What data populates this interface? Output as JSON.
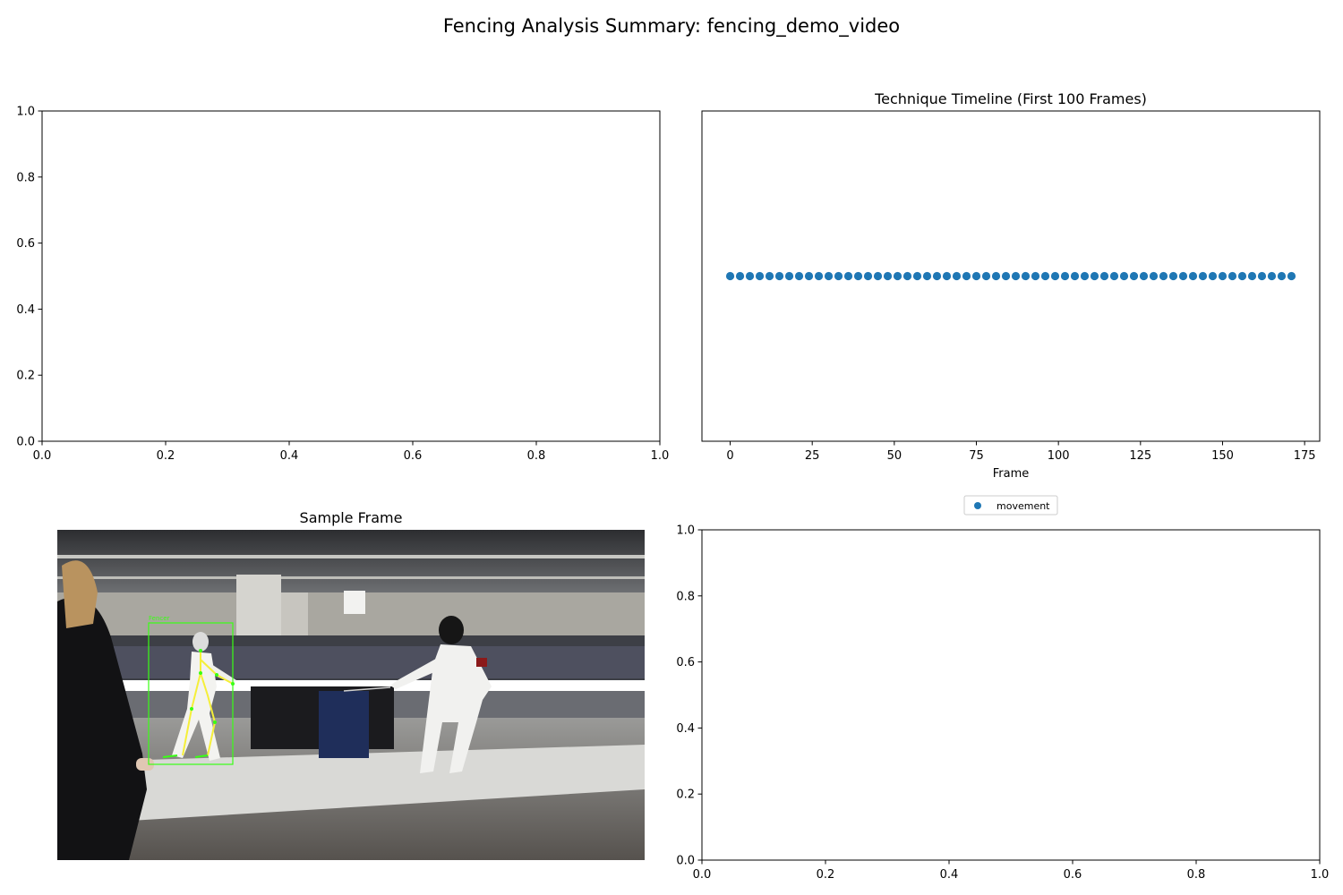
{
  "figure": {
    "suptitle": "Fencing Analysis Summary: fencing_demo_video"
  },
  "chart_data": [
    {
      "type": "scatter",
      "panel": "top-left",
      "title": "",
      "xlabel": "",
      "ylabel": "",
      "xlim": [
        0,
        1
      ],
      "ylim": [
        0,
        1
      ],
      "xticks": [
        "0.0",
        "0.2",
        "0.4",
        "0.6",
        "0.8",
        "1.0"
      ],
      "yticks": [
        "0.0",
        "0.2",
        "0.4",
        "0.6",
        "0.8",
        "1.0"
      ],
      "series": [],
      "grid": false
    },
    {
      "type": "scatter",
      "panel": "top-right",
      "title": "Technique Timeline (First 100 Frames)",
      "xlabel": "Frame",
      "ylabel": "",
      "xlim": [
        -8.6,
        179.6
      ],
      "ylim": [
        0,
        1
      ],
      "xticks": [
        "0",
        "25",
        "50",
        "75",
        "100",
        "125",
        "150",
        "175"
      ],
      "yticks": [],
      "legend": {
        "placement": "bottom-center-outside",
        "entries": [
          "movement"
        ]
      },
      "series": [
        {
          "name": "movement",
          "color": "#1f77b4",
          "x": [
            0,
            3,
            6,
            9,
            12,
            15,
            18,
            21,
            24,
            27,
            30,
            33,
            36,
            39,
            42,
            45,
            48,
            51,
            54,
            57,
            60,
            63,
            66,
            69,
            72,
            75,
            78,
            81,
            84,
            87,
            90,
            93,
            96,
            99,
            102,
            105,
            108,
            111,
            114,
            117,
            120,
            123,
            126,
            129,
            132,
            135,
            138,
            141,
            144,
            147,
            150,
            153,
            156,
            159,
            162,
            165,
            168,
            171
          ],
          "y": [
            0.5,
            0.5,
            0.5,
            0.5,
            0.5,
            0.5,
            0.5,
            0.5,
            0.5,
            0.5,
            0.5,
            0.5,
            0.5,
            0.5,
            0.5,
            0.5,
            0.5,
            0.5,
            0.5,
            0.5,
            0.5,
            0.5,
            0.5,
            0.5,
            0.5,
            0.5,
            0.5,
            0.5,
            0.5,
            0.5,
            0.5,
            0.5,
            0.5,
            0.5,
            0.5,
            0.5,
            0.5,
            0.5,
            0.5,
            0.5,
            0.5,
            0.5,
            0.5,
            0.5,
            0.5,
            0.5,
            0.5,
            0.5,
            0.5,
            0.5,
            0.5,
            0.5,
            0.5,
            0.5,
            0.5,
            0.5,
            0.5,
            0.5
          ]
        }
      ],
      "grid": false
    },
    {
      "type": "image",
      "panel": "bottom-left",
      "title": "Sample Frame",
      "overlay_label": "Fencer"
    },
    {
      "type": "scatter",
      "panel": "bottom-right",
      "title": "",
      "xlabel": "",
      "ylabel": "",
      "xlim": [
        0,
        1
      ],
      "ylim": [
        0,
        1
      ],
      "xticks": [
        "0.0",
        "0.2",
        "0.4",
        "0.6",
        "0.8",
        "1.0"
      ],
      "yticks": [
        "0.0",
        "0.2",
        "0.4",
        "0.6",
        "0.8",
        "1.0"
      ],
      "series": [],
      "grid": false
    }
  ]
}
